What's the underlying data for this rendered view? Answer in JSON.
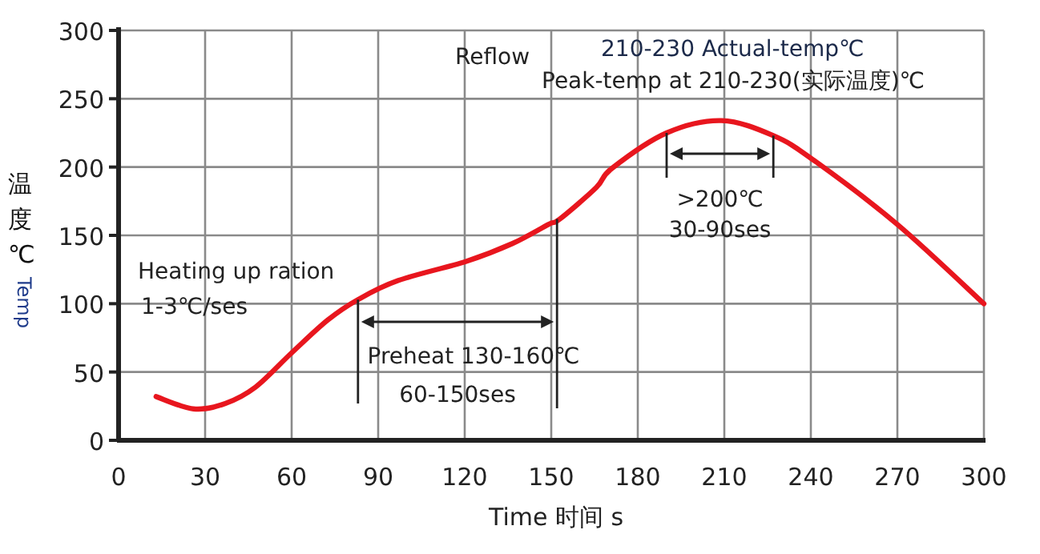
{
  "chart_data": {
    "type": "line",
    "xlabel": "Time 时间 s",
    "ylabel": "温度℃ Temp",
    "x": [
      13,
      26,
      37,
      47.5,
      60,
      72.5,
      83,
      97,
      120.5,
      136.5,
      149,
      153,
      165.6,
      171,
      190,
      209,
      227,
      241,
      270,
      300
    ],
    "series": [
      {
        "color": "#e8161e",
        "values": [
          32,
          23,
          27,
          39,
          64,
          88,
          103,
          117,
          131,
          144,
          158,
          162,
          185,
          199,
          225,
          234,
          223,
          205,
          158,
          100
        ]
      }
    ],
    "xlim": [
      0,
      300
    ],
    "xticks": [
      0,
      30,
      60,
      90,
      120,
      150,
      180,
      210,
      240,
      270,
      300
    ],
    "ylim": [
      0,
      300
    ],
    "yticks": [
      0,
      50,
      100,
      150,
      200,
      250,
      300
    ],
    "grid": true,
    "marker": "none",
    "line_style": "solid",
    "annotations": [
      "Reflow",
      "210-230 Actual-temp℃",
      "Peak-temp at 210-230(实际温度)℃",
      "Heating up ration",
      "1-3℃/ses",
      {
        "text": "Preheat 130-160℃",
        "x": 83,
        "y": 103
      },
      "60-150ses",
      {
        "text": ">200℃",
        "x": 190,
        "y": 225
      },
      "30-90ses"
    ]
  }
}
